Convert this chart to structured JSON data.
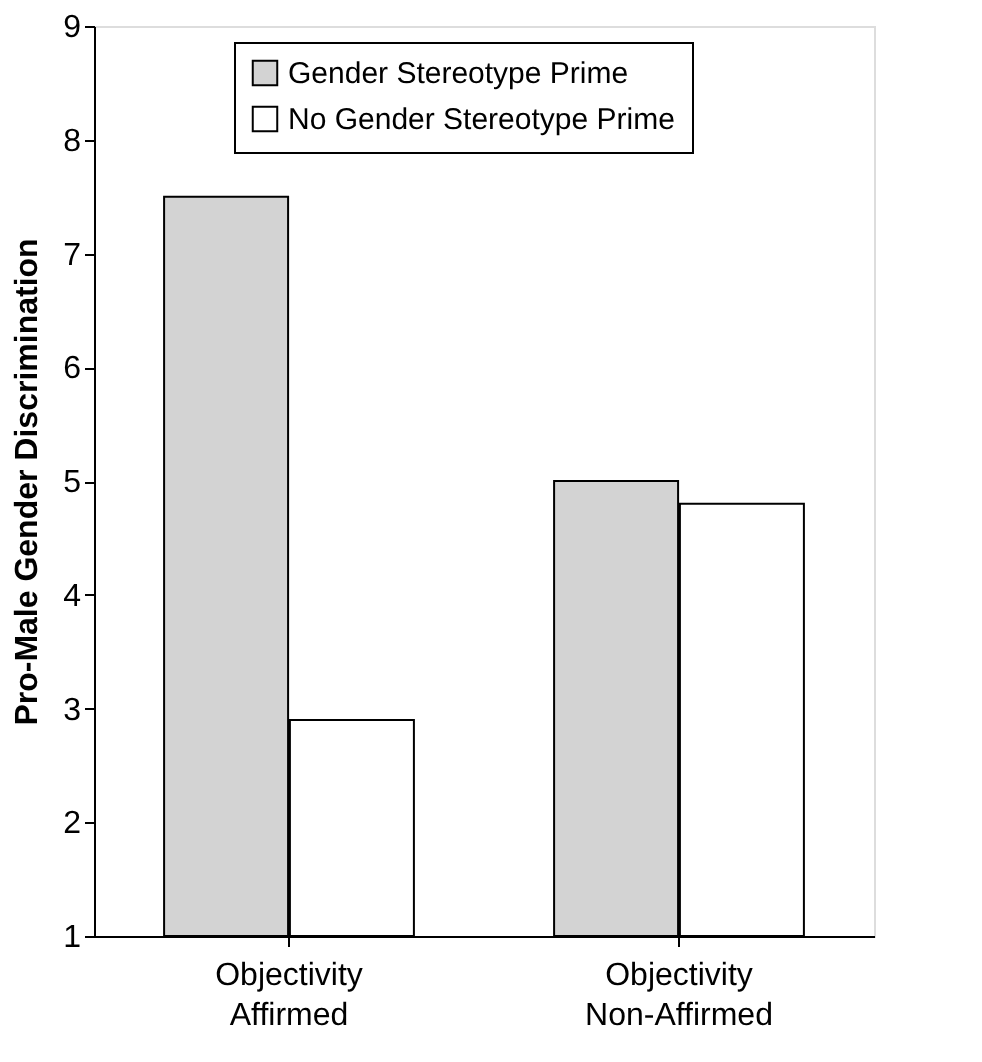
{
  "chart_data": {
    "type": "bar",
    "ylabel": "Pro-Male Gender Discrimination",
    "categories": [
      "Objectivity Affirmed",
      "Objectivity Non-Affirmed"
    ],
    "series": [
      {
        "name": "Gender Stereotype Prime",
        "color": "#d3d3d3",
        "values": [
          7.5,
          5.0
        ]
      },
      {
        "name": "No Gender Stereotype Prime",
        "color": "#ffffff",
        "values": [
          2.9,
          4.8
        ]
      }
    ],
    "ylim": [
      1,
      9
    ],
    "yticks": [
      1,
      2,
      3,
      4,
      5,
      6,
      7,
      8,
      9
    ],
    "grid": false,
    "legend": "top"
  }
}
